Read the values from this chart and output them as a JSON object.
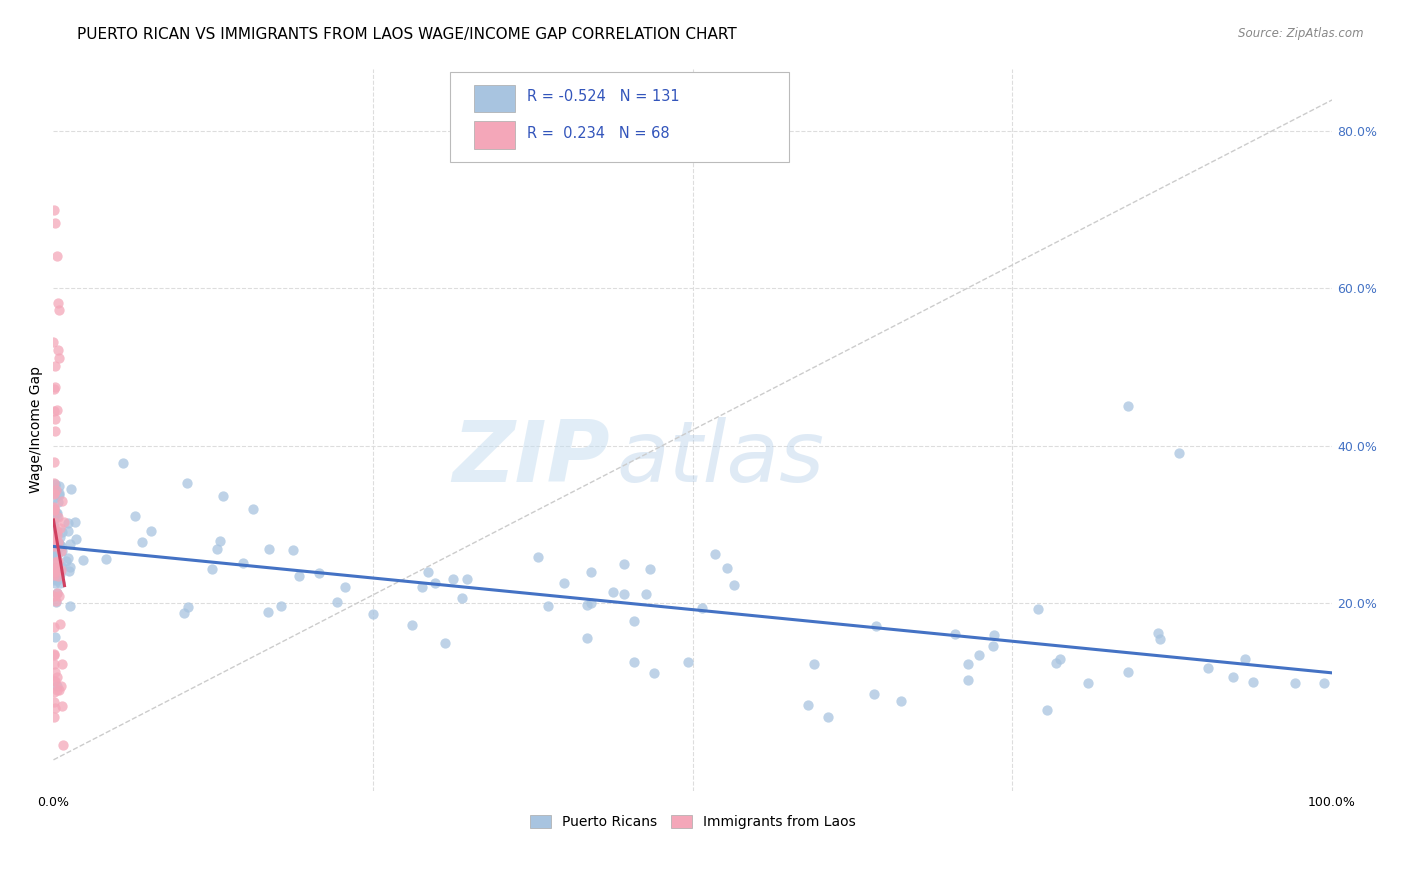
{
  "title": "PUERTO RICAN VS IMMIGRANTS FROM LAOS WAGE/INCOME GAP CORRELATION CHART",
  "source": "Source: ZipAtlas.com",
  "ylabel": "Wage/Income Gap",
  "x_min": 0.0,
  "x_max": 1.0,
  "y_min": -0.04,
  "y_max": 0.88,
  "watermark_zip": "ZIP",
  "watermark_atlas": "atlas",
  "blue_R": -0.524,
  "blue_N": 131,
  "pink_R": 0.234,
  "pink_N": 68,
  "blue_color": "#a8c4e0",
  "pink_color": "#f4a7b9",
  "blue_edge_color": "#7aaac8",
  "pink_edge_color": "#e888a0",
  "blue_line_color": "#4472c4",
  "pink_line_color": "#d04060",
  "legend_label_blue": "Puerto Ricans",
  "legend_label_pink": "Immigrants from Laos",
  "diag_line_color": "#cccccc",
  "grid_color": "#dddddd",
  "background_color": "#ffffff",
  "title_fontsize": 11,
  "axis_label_fontsize": 10,
  "tick_fontsize": 9,
  "right_tick_color": "#4472c4"
}
